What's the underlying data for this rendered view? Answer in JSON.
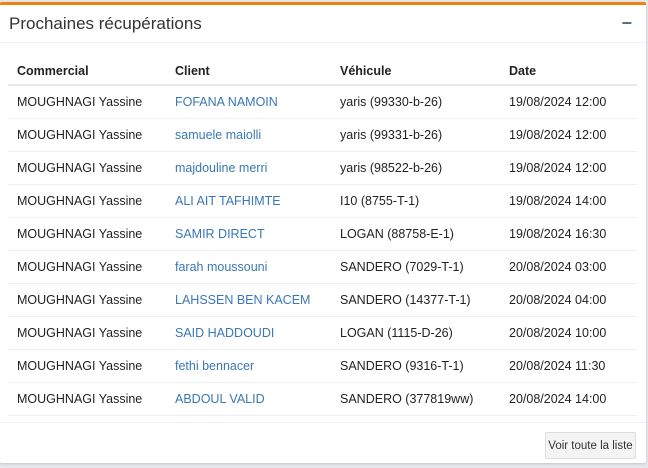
{
  "panel": {
    "title": "Prochaines récupérations",
    "collapse_icon": "minus-icon"
  },
  "table": {
    "headers": [
      "Commercial",
      "Client",
      "Véhicule",
      "Date"
    ],
    "rows": [
      [
        "MOUGHNAGI Yassine",
        "FOFANA NAMOIN",
        "yaris (99330-b-26)",
        "19/08/2024 12:00"
      ],
      [
        "MOUGHNAGI Yassine",
        "samuele maiolli",
        "yaris (99331-b-26)",
        "19/08/2024 12:00"
      ],
      [
        "MOUGHNAGI Yassine",
        "majdouline merri",
        "yaris (98522-b-26)",
        "19/08/2024 12:00"
      ],
      [
        "MOUGHNAGI Yassine",
        "ALI AIT TAFHIMTE",
        "I10 (8755-T-1)",
        "19/08/2024 14:00"
      ],
      [
        "MOUGHNAGI Yassine",
        "SAMIR DIRECT",
        "LOGAN (88758-E-1)",
        "19/08/2024 16:30"
      ],
      [
        "MOUGHNAGI Yassine",
        "farah moussouni",
        "SANDERO (7029-T-1)",
        "20/08/2024 03:00"
      ],
      [
        "MOUGHNAGI Yassine",
        "LAHSSEN BEN KACEM",
        "SANDERO (14377-T-1)",
        "20/08/2024 04:00"
      ],
      [
        "MOUGHNAGI Yassine",
        "SAID HADDOUDI",
        "LOGAN (1115-D-26)",
        "20/08/2024 10:00"
      ],
      [
        "MOUGHNAGI Yassine",
        "fethi bennacer",
        "SANDERO (9316-T-1)",
        "20/08/2024 11:30"
      ],
      [
        "MOUGHNAGI Yassine",
        "ABDOUL VALID",
        "SANDERO (377819ww)",
        "20/08/2024 14:00"
      ]
    ]
  },
  "footer": {
    "button_label": "Voir toute la liste"
  },
  "colors": {
    "accent": "#f0820f",
    "link": "#3a77b5"
  }
}
